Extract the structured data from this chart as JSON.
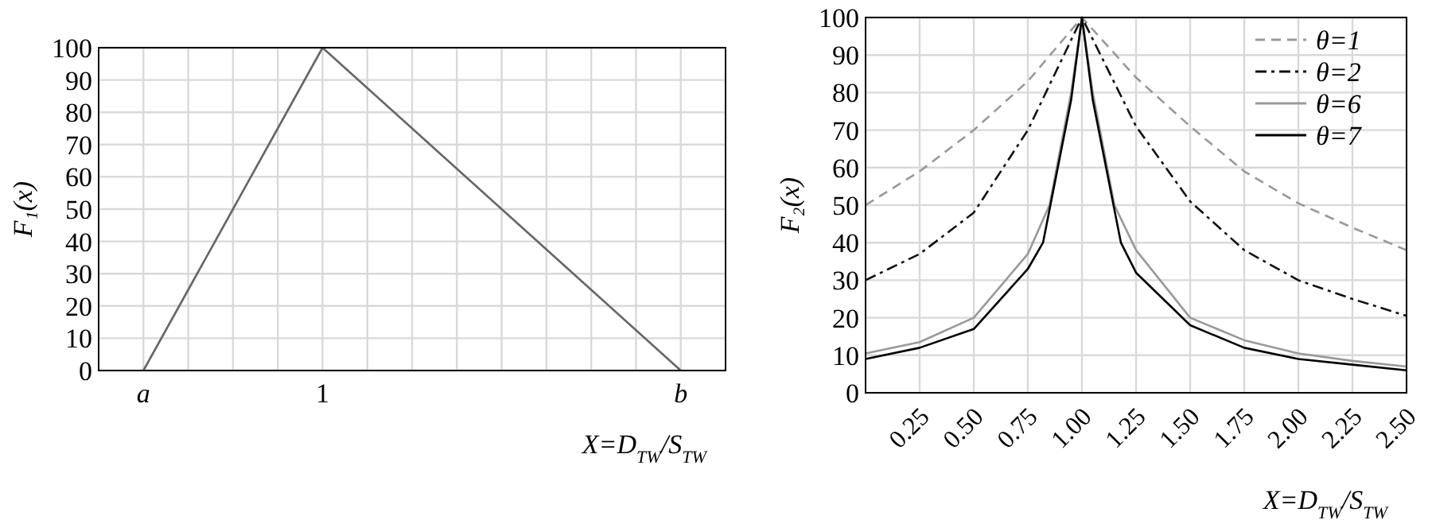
{
  "chart_data": [
    {
      "type": "line",
      "ylabel": "F₁(x)",
      "xlabel": "X=D$_{TW}$/S$_{TW}$",
      "categories": [
        "a",
        null,
        null,
        null,
        "1",
        null,
        null,
        null,
        null,
        null,
        null,
        null,
        "b"
      ],
      "series": [
        {
          "color": "#666666",
          "values": [
            0,
            25,
            50,
            75,
            100,
            87.5,
            75,
            62.5,
            50,
            37.5,
            25,
            12.5,
            0
          ]
        }
      ],
      "ylim": [
        0,
        100
      ],
      "yticks": [
        0,
        10,
        20,
        30,
        40,
        50,
        60,
        70,
        80,
        90,
        100
      ],
      "grid": true,
      "legend": false,
      "marker": "none",
      "line_style": "solid"
    },
    {
      "type": "line",
      "ylabel": "F₂(x)",
      "xlabel": "X=D$_{TW}$/S$_{TW}$",
      "series": [
        {
          "name": "θ=1",
          "color": "#999999",
          "line_style": "dashed",
          "x": [
            0,
            0.25,
            0.5,
            0.75,
            1,
            1.25,
            1.5,
            1.75,
            2,
            2.25,
            2.5
          ],
          "values": [
            50,
            59,
            70,
            83,
            100,
            84,
            71,
            59,
            50.5,
            44,
            38
          ]
        },
        {
          "name": "θ=2",
          "color": "#111111",
          "line_style": "dashdot",
          "x": [
            0,
            0.25,
            0.5,
            0.75,
            1,
            1.25,
            1.5,
            1.75,
            2,
            2.25,
            2.5
          ],
          "values": [
            30,
            37,
            48,
            70,
            100,
            71,
            51,
            38,
            30,
            25,
            20.5
          ]
        },
        {
          "name": "θ=6",
          "color": "#999999",
          "line_style": "solid",
          "x": [
            0,
            0.25,
            0.5,
            0.75,
            0.85,
            0.95,
            1,
            1.05,
            1.15,
            1.25,
            1.5,
            1.75,
            2,
            2.25,
            2.5
          ],
          "values": [
            10.5,
            13.5,
            20,
            37,
            50,
            80,
            100,
            80,
            50,
            38,
            20,
            14,
            10.5,
            8.5,
            7
          ]
        },
        {
          "name": "θ=7",
          "color": "#000000",
          "line_style": "solid",
          "x": [
            0,
            0.25,
            0.5,
            0.75,
            0.82,
            0.95,
            1,
            1.05,
            1.18,
            1.25,
            1.5,
            1.75,
            2,
            2.25,
            2.5
          ],
          "values": [
            9,
            12,
            17,
            33,
            40,
            78,
            100,
            78,
            40,
            32,
            18,
            12,
            9,
            7.5,
            6
          ]
        }
      ],
      "xlim": [
        0,
        2.5
      ],
      "xticks": [
        {
          "value": 0.25,
          "label": "0.25"
        },
        {
          "value": 0.5,
          "label": "0.50"
        },
        {
          "value": 0.75,
          "label": "0.75"
        },
        {
          "value": 1,
          "label": "1.00"
        },
        {
          "value": 1.25,
          "label": "1.25"
        },
        {
          "value": 1.5,
          "label": "1.50"
        },
        {
          "value": 1.75,
          "label": "1.75"
        },
        {
          "value": 2,
          "label": "2.00"
        },
        {
          "value": 2.25,
          "label": "2.25"
        },
        {
          "value": 2.5,
          "label": "2.50"
        }
      ],
      "ylim": [
        0,
        100
      ],
      "yticks": [
        0,
        10,
        20,
        30,
        40,
        50,
        60,
        70,
        80,
        90,
        100
      ],
      "grid": true,
      "legend": "top right",
      "marker": "none"
    }
  ]
}
